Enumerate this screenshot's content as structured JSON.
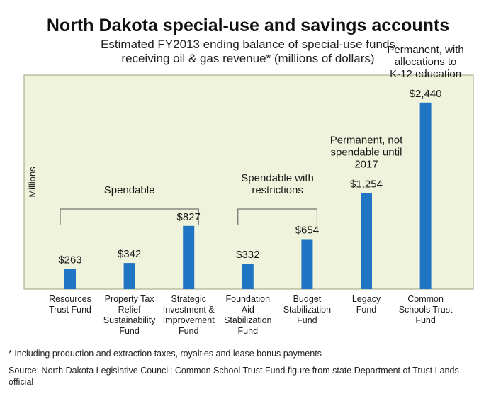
{
  "header": {
    "title": "North Dakota special-use and savings accounts",
    "subtitle_line1": "Estimated FY2013 ending balance of special-use funds",
    "subtitle_line2": "receiving oil & gas revenue* (millions of dollars)"
  },
  "chart_data": {
    "type": "bar",
    "ylabel": "Millions",
    "ylim": [
      0,
      2800
    ],
    "grid": false,
    "categories": [
      [
        "Resources",
        "Trust Fund"
      ],
      [
        "Property Tax",
        "Relief",
        "Sustainability",
        "Fund"
      ],
      [
        "Strategic",
        "Investment &",
        "Improvement",
        "Fund"
      ],
      [
        "Foundation",
        "Aid",
        "Stabilization",
        "Fund"
      ],
      [
        "Budget",
        "Stabilization",
        "Fund"
      ],
      [
        "Legacy",
        "Fund"
      ],
      [
        "Common",
        "Schools Trust",
        "Fund"
      ]
    ],
    "values": [
      263,
      342,
      827,
      332,
      654,
      1254,
      2440
    ],
    "value_labels": [
      "$263",
      "$342",
      "$827",
      "$332",
      "$654",
      "$1,254",
      "$2,440"
    ],
    "group_annotations": [
      {
        "lines": [
          "Spendable"
        ],
        "from": 0,
        "to": 2,
        "bracket": true
      },
      {
        "lines": [
          "Spendable with",
          "restrictions"
        ],
        "from": 3,
        "to": 4,
        "bracket": true
      },
      {
        "lines": [
          "Permanent, not",
          "spendable until",
          "2017"
        ],
        "from": 5,
        "to": 5,
        "bracket": false
      },
      {
        "lines": [
          "Permanent, with",
          "allocations to",
          "K-12 education"
        ],
        "from": 6,
        "to": 6,
        "bracket": false
      }
    ],
    "colors": {
      "bar": "#1f74c4",
      "plot_bg": "#eff3db",
      "plot_border": "#9aa07a",
      "bracket": "#555555"
    }
  },
  "footer": {
    "footnote": "* Including production and extraction taxes, royalties and lease bonus payments",
    "source": "Source: North Dakota Legislative Council; Common School Trust Fund figure from state Department of Trust Lands official"
  }
}
